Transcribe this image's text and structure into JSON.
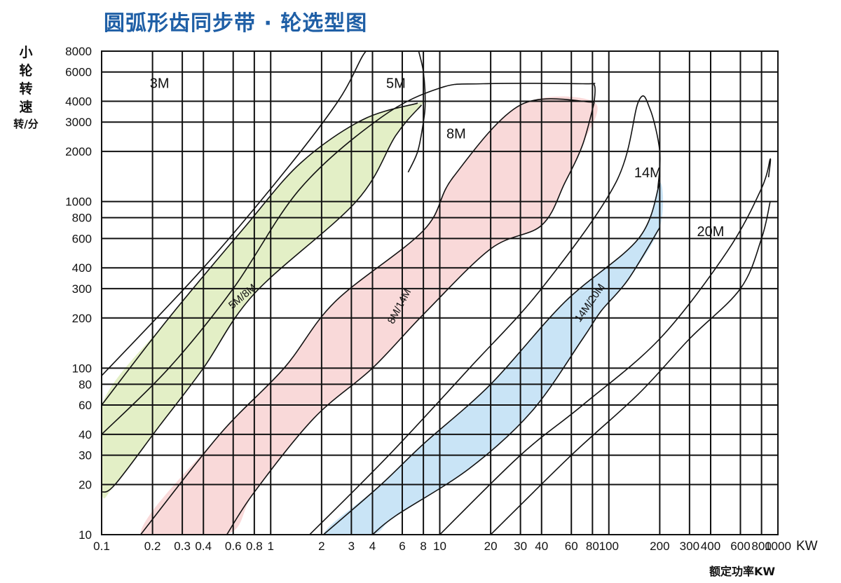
{
  "title": "圆弧形齿同步带 · 轮选型图",
  "y_axis": {
    "label_chars": [
      "小",
      "轮",
      "转",
      "速"
    ],
    "unit": "转/分"
  },
  "x_axis": {
    "label": "额定功率KW",
    "unit": "KW"
  },
  "colors": {
    "band_5M_8M": "#e3efc6",
    "band_8M_14M": "#f9d9d9",
    "band_14M_20M": "#c9e4f6",
    "grid": "#111111",
    "curve": "#111111",
    "title": "#1f5fa6"
  },
  "chart_data": {
    "type": "area",
    "title": "圆弧形齿同步带 · 轮选型图",
    "xlabel": "额定功率KW",
    "ylabel": "小轮转速 转/分",
    "x_scale": "log",
    "y_scale": "log",
    "xlim": [
      0.1,
      1000
    ],
    "ylim": [
      10,
      8000
    ],
    "x_ticks": [
      0.1,
      0.2,
      0.3,
      0.4,
      0.6,
      0.8,
      1,
      2,
      3,
      4,
      6,
      8,
      10,
      20,
      30,
      40,
      60,
      80,
      100,
      200,
      300,
      400,
      600,
      800,
      1000
    ],
    "x_tick_labels": [
      "0.1",
      "0.2",
      "0.3",
      "0.4",
      "0.6",
      "0.8",
      "1",
      "2",
      "3",
      "4",
      "6",
      "8",
      "10",
      "20",
      "30",
      "40",
      "60",
      "80",
      "100",
      "200",
      "300",
      "400",
      "600",
      "800",
      "1000"
    ],
    "y_ticks": [
      10,
      20,
      30,
      40,
      60,
      80,
      100,
      200,
      300,
      400,
      600,
      800,
      1000,
      2000,
      3000,
      4000,
      6000,
      8000
    ],
    "y_tick_labels": [
      "10",
      "20",
      "30",
      "40",
      "60",
      "80",
      "100",
      "200",
      "300",
      "400",
      "600",
      "800",
      "1000",
      "2000",
      "3000",
      "4000",
      "6000",
      "8000"
    ],
    "grid": true,
    "region_labels": [
      {
        "text": "3M",
        "x": 0.22,
        "y": 4800
      },
      {
        "text": "5M",
        "x": 5.5,
        "y": 4800
      },
      {
        "text": "8M",
        "x": 12.5,
        "y": 2400
      },
      {
        "text": "14M",
        "x": 170,
        "y": 1400
      },
      {
        "text": "20M",
        "x": 400,
        "y": 620
      }
    ],
    "bands": [
      {
        "name": "5M/8M",
        "label_pos": [
          0.7,
          260
        ],
        "label_angle": -40,
        "color": "#e3efc6",
        "polygon": [
          [
            0.1,
            60
          ],
          [
            0.25,
            200
          ],
          [
            0.7,
            700
          ],
          [
            1.5,
            1700
          ],
          [
            3.5,
            3100
          ],
          [
            7.4,
            3900
          ],
          [
            7.8,
            3800
          ],
          [
            5.5,
            2500
          ],
          [
            3.2,
            1000
          ],
          [
            0.8,
            280
          ],
          [
            0.4,
            100
          ],
          [
            0.22,
            45
          ],
          [
            0.12,
            20
          ],
          [
            0.1,
            18
          ]
        ]
      },
      {
        "name": "8M/14M",
        "label_pos": [
          6.0,
          230
        ],
        "label_angle": -62,
        "color": "#f9d9d9",
        "polygon": [
          [
            0.17,
            10
          ],
          [
            0.5,
            40
          ],
          [
            1.2,
            100
          ],
          [
            2.4,
            250
          ],
          [
            8,
            670
          ],
          [
            12,
            1400
          ],
          [
            30,
            3800
          ],
          [
            82,
            3950
          ],
          [
            70,
            2200
          ],
          [
            55,
            1300
          ],
          [
            40,
            720
          ],
          [
            20,
            520
          ],
          [
            8,
            210
          ],
          [
            4,
            100
          ],
          [
            1.8,
            50
          ],
          [
            0.8,
            18
          ],
          [
            0.55,
            10
          ]
        ]
      },
      {
        "name": "14M/20M",
        "label_pos": [
          80,
          240
        ],
        "label_angle": -55,
        "color": "#c9e4f6",
        "polygon": [
          [
            2.05,
            10
          ],
          [
            4.5,
            20
          ],
          [
            8,
            35
          ],
          [
            20,
            80
          ],
          [
            55,
            250
          ],
          [
            150,
            600
          ],
          [
            200,
            1300
          ],
          [
            200,
            700
          ],
          [
            130,
            340
          ],
          [
            90,
            220
          ],
          [
            70,
            150
          ],
          [
            35,
            55
          ],
          [
            15,
            25
          ],
          [
            5.5,
            13
          ],
          [
            4,
            10
          ]
        ]
      }
    ],
    "limit_curves": [
      {
        "name": "3M upper",
        "points": [
          [
            0.1,
            90
          ],
          [
            0.4,
            400
          ],
          [
            1.2,
            1500
          ],
          [
            2.5,
            4000
          ],
          [
            3.5,
            7500
          ],
          [
            3.8,
            8000
          ]
        ]
      },
      {
        "name": "5M/8M upper",
        "points": [
          [
            0.1,
            60
          ],
          [
            0.25,
            200
          ],
          [
            0.7,
            700
          ],
          [
            1.5,
            1700
          ],
          [
            3.5,
            3100
          ],
          [
            7.4,
            3900
          ]
        ]
      },
      {
        "name": "5M/8M lower",
        "points": [
          [
            0.1,
            18
          ],
          [
            0.12,
            20
          ],
          [
            0.22,
            45
          ],
          [
            0.4,
            100
          ],
          [
            0.8,
            280
          ],
          [
            3.2,
            1000
          ],
          [
            5.5,
            2500
          ],
          [
            7.8,
            3800
          ]
        ]
      },
      {
        "name": "5M limit",
        "points": [
          [
            7.5,
            8000
          ],
          [
            8,
            6000
          ],
          [
            8.2,
            4000
          ],
          [
            8.0,
            3000
          ],
          [
            7.4,
            2000
          ],
          [
            6.5,
            1500
          ]
        ]
      },
      {
        "name": "5M outer",
        "points": [
          [
            0.1,
            40
          ],
          [
            0.25,
            100
          ],
          [
            0.6,
            300
          ],
          [
            1.5,
            1200
          ],
          [
            4.5,
            3200
          ],
          [
            10,
            4800
          ],
          [
            18,
            5100
          ],
          [
            70,
            5100
          ],
          [
            82,
            5000
          ],
          [
            82,
            4000
          ]
        ]
      },
      {
        "name": "8M/14M upper",
        "points": [
          [
            0.17,
            10
          ],
          [
            0.5,
            40
          ],
          [
            1.2,
            100
          ],
          [
            2.4,
            250
          ],
          [
            8,
            670
          ],
          [
            12,
            1400
          ],
          [
            30,
            3800
          ],
          [
            82,
            3950
          ]
        ]
      },
      {
        "name": "8M/14M lower",
        "points": [
          [
            0.55,
            10
          ],
          [
            0.8,
            18
          ],
          [
            1.8,
            50
          ],
          [
            4,
            100
          ],
          [
            8,
            210
          ],
          [
            20,
            520
          ],
          [
            40,
            720
          ],
          [
            55,
            1300
          ],
          [
            70,
            2200
          ],
          [
            82,
            3950
          ]
        ]
      },
      {
        "name": "14M outer",
        "points": [
          [
            1.7,
            10
          ],
          [
            5,
            30
          ],
          [
            15,
            100
          ],
          [
            40,
            300
          ],
          [
            110,
            1300
          ],
          [
            150,
            4000
          ],
          [
            175,
            3600
          ],
          [
            200,
            2000
          ],
          [
            195,
            1200
          ]
        ]
      },
      {
        "name": "14M/20M upper",
        "points": [
          [
            2.05,
            10
          ],
          [
            4.5,
            20
          ],
          [
            8,
            35
          ],
          [
            20,
            80
          ],
          [
            55,
            250
          ],
          [
            150,
            600
          ],
          [
            200,
            1300
          ]
        ]
      },
      {
        "name": "14M/20M lower",
        "points": [
          [
            4,
            10
          ],
          [
            5.5,
            13
          ],
          [
            15,
            25
          ],
          [
            35,
            55
          ],
          [
            70,
            150
          ],
          [
            90,
            220
          ],
          [
            130,
            340
          ],
          [
            200,
            700
          ]
        ]
      },
      {
        "name": "20M upper",
        "points": [
          [
            10,
            10
          ],
          [
            30,
            30
          ],
          [
            70,
            60
          ],
          [
            200,
            150
          ],
          [
            500,
            500
          ],
          [
            800,
            1200
          ],
          [
            900,
            1800
          ],
          [
            880,
            1400
          ]
        ]
      },
      {
        "name": "20M lower",
        "points": [
          [
            20,
            10
          ],
          [
            60,
            30
          ],
          [
            150,
            70
          ],
          [
            300,
            150
          ],
          [
            600,
            300
          ],
          [
            800,
            600
          ],
          [
            900,
            1000
          ]
        ]
      }
    ]
  }
}
